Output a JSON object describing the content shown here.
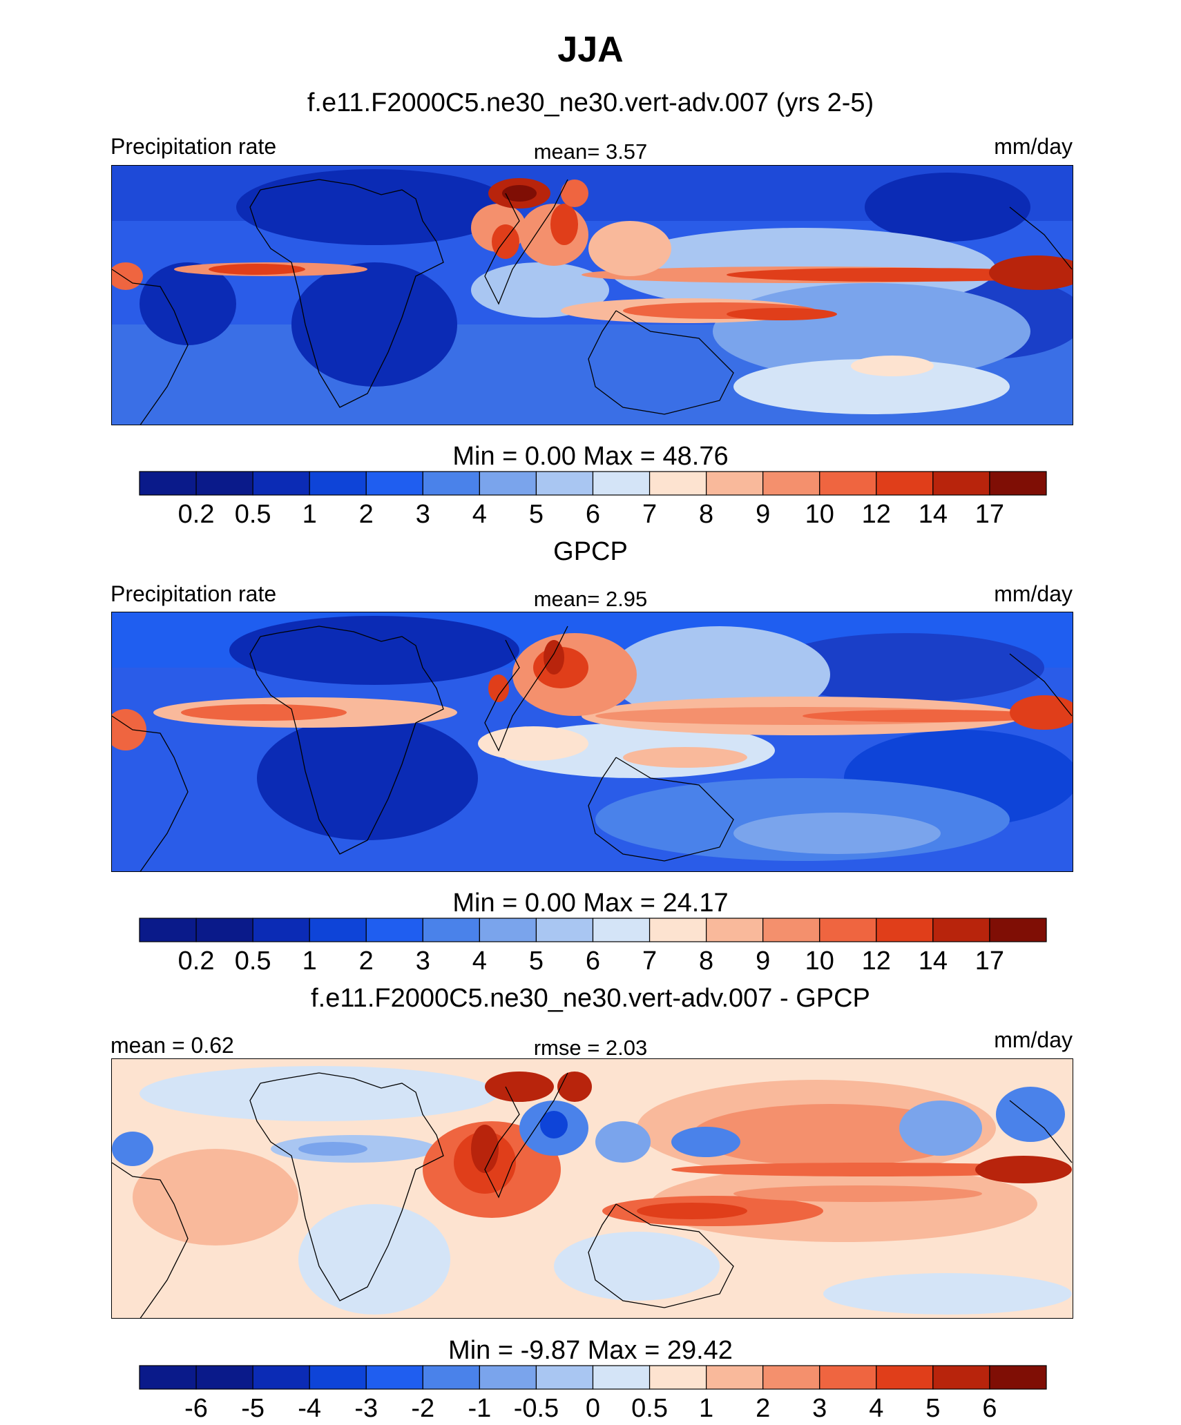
{
  "figure": {
    "title": "JJA"
  },
  "panels": [
    {
      "title": "f.e11.F2000C5.ne30_ne30.vert-adv.007 (yrs 2-5)",
      "left_label": "Precipitation rate",
      "center_label": "mean=   3.57",
      "right_label": "mm/day",
      "minmax": "Min =    0.00 Max =  48.76",
      "colorbar_ticks": [
        "0.2",
        "0.5",
        "1",
        "2",
        "3",
        "4",
        "5",
        "6",
        "7",
        "8",
        "9",
        "10",
        "12",
        "14",
        "17"
      ]
    },
    {
      "title": "GPCP",
      "left_label": "Precipitation rate",
      "center_label": "mean=   2.95",
      "right_label": "mm/day",
      "minmax": "Min =    0.00 Max =  24.17",
      "colorbar_ticks": [
        "0.2",
        "0.5",
        "1",
        "2",
        "3",
        "4",
        "5",
        "6",
        "7",
        "8",
        "9",
        "10",
        "12",
        "14",
        "17"
      ]
    },
    {
      "title": "f.e11.F2000C5.ne30_ne30.vert-adv.007 - GPCP",
      "left_label": "mean =   0.62",
      "center_label": "rmse =   2.03",
      "right_label": "mm/day",
      "minmax": "Min =  -9.87 Max =  29.42",
      "colorbar_ticks": [
        "-6",
        "-5",
        "-4",
        "-3",
        "-2",
        "-1",
        "-0.5",
        "0",
        "0.5",
        "1",
        "2",
        "3",
        "4",
        "5",
        "6"
      ]
    }
  ],
  "colorbar_colors": [
    "#0a1a8a",
    "#0b2bb5",
    "#0e44d8",
    "#1f5ef0",
    "#4a82ea",
    "#7aa4ec",
    "#a9c6f2",
    "#d4e4f7",
    "#fde3d0",
    "#f9b99b",
    "#f4906d",
    "#ef6540",
    "#e03e1a",
    "#b8240c",
    "#7f0e05"
  ],
  "chart_data": [
    {
      "type": "heatmap",
      "title": "f.e11.F2000C5.ne30_ne30.vert-adv.007 (yrs 2-5)",
      "variable": "Precipitation rate",
      "units": "mm/day",
      "mean": 3.57,
      "min": 0.0,
      "max": 48.76,
      "contour_levels": [
        0.2,
        0.5,
        1,
        2,
        3,
        4,
        5,
        6,
        7,
        8,
        9,
        10,
        12,
        14,
        17
      ]
    },
    {
      "type": "heatmap",
      "title": "GPCP",
      "variable": "Precipitation rate",
      "units": "mm/day",
      "mean": 2.95,
      "min": 0.0,
      "max": 24.17,
      "contour_levels": [
        0.2,
        0.5,
        1,
        2,
        3,
        4,
        5,
        6,
        7,
        8,
        9,
        10,
        12,
        14,
        17
      ]
    },
    {
      "type": "heatmap",
      "title": "f.e11.F2000C5.ne30_ne30.vert-adv.007 - GPCP",
      "units": "mm/day",
      "mean": 0.62,
      "rmse": 2.03,
      "min": -9.87,
      "max": 29.42,
      "contour_levels": [
        -6,
        -5,
        -4,
        -3,
        -2,
        -1,
        -0.5,
        0,
        0.5,
        1,
        2,
        3,
        4,
        5,
        6
      ]
    }
  ]
}
